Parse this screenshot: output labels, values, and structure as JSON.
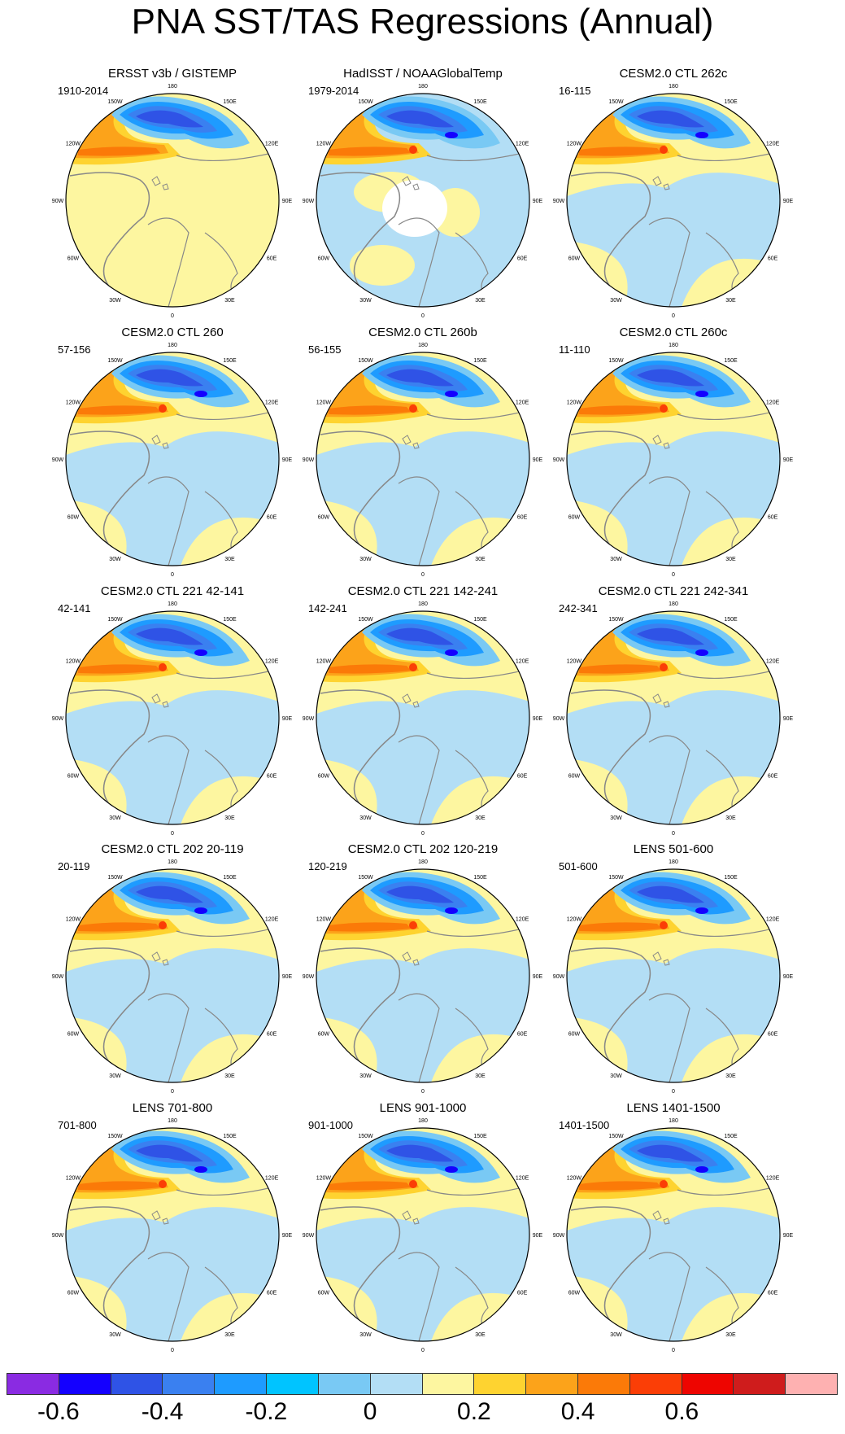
{
  "title": "PNA SST/TAS Regressions (Annual)",
  "panels": [
    {
      "title": "ERSST v3b / GISTEMP",
      "range": "1910-2014",
      "variant": "obs"
    },
    {
      "title": "HadISST / NOAAGlobalTemp",
      "range": "1979-2014",
      "variant": "obs2"
    },
    {
      "title": "CESM2.0 CTL 262c",
      "range": "16-115",
      "variant": "model"
    },
    {
      "title": "CESM2.0 CTL 260",
      "range": "57-156",
      "variant": "model"
    },
    {
      "title": "CESM2.0 CTL 260b",
      "range": "56-155",
      "variant": "model"
    },
    {
      "title": "CESM2.0 CTL 260c",
      "range": "11-110",
      "variant": "model"
    },
    {
      "title": "CESM2.0 CTL 221 42-141",
      "range": "42-141",
      "variant": "model"
    },
    {
      "title": "CESM2.0 CTL 221 142-241",
      "range": "142-241",
      "variant": "model"
    },
    {
      "title": "CESM2.0 CTL 221 242-341",
      "range": "242-341",
      "variant": "model"
    },
    {
      "title": "CESM2.0 CTL 202 20-119",
      "range": "20-119",
      "variant": "model"
    },
    {
      "title": "CESM2.0 CTL 202 120-219",
      "range": "120-219",
      "variant": "model"
    },
    {
      "title": "LENS 501-600",
      "range": "501-600",
      "variant": "model"
    },
    {
      "title": "LENS 701-800",
      "range": "701-800",
      "variant": "model"
    },
    {
      "title": "LENS 901-1000",
      "range": "901-1000",
      "variant": "model"
    },
    {
      "title": "LENS 1401-1500",
      "range": "1401-1500",
      "variant": "model"
    }
  ],
  "longitude_labels": [
    "180",
    "150E",
    "120E",
    "90E",
    "60E",
    "30E",
    "0",
    "30W",
    "60W",
    "90W",
    "120W",
    "150W"
  ],
  "colorbar": {
    "colors": [
      "#8a2be2",
      "#1400ff",
      "#2f53e6",
      "#3a80f0",
      "#1e9bff",
      "#00c4ff",
      "#79c9f4",
      "#b3def5",
      "#fdf6a0",
      "#fed330",
      "#fca31a",
      "#fb7a08",
      "#fb3e06",
      "#ee0500",
      "#cf1c1c",
      "#feb1b1"
    ],
    "labels": [
      "-0.6",
      "-0.4",
      "-0.2",
      "0",
      "0.2",
      "0.4",
      "0.6"
    ],
    "label_values": [
      -0.6,
      -0.4,
      -0.2,
      0,
      0.2,
      0.4,
      0.6
    ]
  },
  "colors": {
    "land_outline": "#888888",
    "map_border": "#000000",
    "missing": "#ffffff"
  }
}
